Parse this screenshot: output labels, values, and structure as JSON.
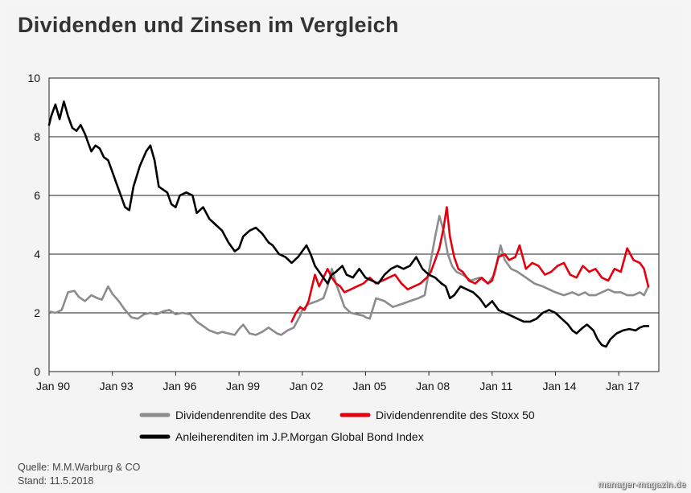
{
  "title": "Dividenden und Zinsen im Vergleich",
  "footer": {
    "source": "Quelle: M.M.Warburg & CO",
    "date": "Stand: 11.5.2018"
  },
  "watermark": "manager-magazin.de",
  "chart_data": {
    "type": "line",
    "title": "Dividenden und Zinsen im Vergleich",
    "xlabel": "",
    "ylabel": "",
    "xlim": [
      1990.0,
      2018.9
    ],
    "ylim": [
      0,
      10
    ],
    "y_ticks": [
      0,
      2,
      4,
      6,
      8,
      10
    ],
    "x_ticks": [
      {
        "label": "Jan 90",
        "value": 1990
      },
      {
        "label": "Jan 93",
        "value": 1993
      },
      {
        "label": "Jan 96",
        "value": 1996
      },
      {
        "label": "Jan 99",
        "value": 1999
      },
      {
        "label": "Jan 02",
        "value": 2002
      },
      {
        "label": "Jan 05",
        "value": 2005
      },
      {
        "label": "Jan 08",
        "value": 2008
      },
      {
        "label": "Jan 11",
        "value": 2011
      },
      {
        "label": "Jan 14",
        "value": 2014
      },
      {
        "label": "Jan 17",
        "value": 2017
      }
    ],
    "grid": "horizontal",
    "legend_position": "bottom",
    "series": [
      {
        "name": "Dividendenrendite des Dax",
        "color": "#8c8c8c",
        "x": [
          1990.0,
          1990.3,
          1990.6,
          1990.9,
          1991.2,
          1991.4,
          1991.7,
          1992.0,
          1992.3,
          1992.5,
          1992.8,
          1993.0,
          1993.3,
          1993.6,
          1993.9,
          1994.2,
          1994.5,
          1994.8,
          1995.1,
          1995.4,
          1995.7,
          1996.0,
          1996.3,
          1996.7,
          1997.0,
          1997.3,
          1997.6,
          1998.0,
          1998.2,
          1998.5,
          1998.8,
          1999.0,
          1999.2,
          1999.5,
          1999.8,
          2000.1,
          2000.4,
          2000.8,
          2001.0,
          2001.3,
          2001.6,
          2001.9,
          2002.0,
          2002.3,
          2002.7,
          2003.0,
          2003.2,
          2003.4,
          2003.6,
          2003.8,
          2004.0,
          2004.3,
          2004.6,
          2004.9,
          2005.0,
          2005.2,
          2005.5,
          2005.9,
          2006.3,
          2006.7,
          2007.1,
          2007.5,
          2007.8,
          2008.0,
          2008.1,
          2008.3,
          2008.5,
          2008.7,
          2008.9,
          2009.1,
          2009.3,
          2009.6,
          2010.0,
          2010.4,
          2010.8,
          2011.1,
          2011.4,
          2011.6,
          2011.9,
          2012.2,
          2012.6,
          2013.0,
          2013.4,
          2013.7,
          2014.0,
          2014.4,
          2014.8,
          2015.1,
          2015.4,
          2015.6,
          2015.9,
          2016.2,
          2016.5,
          2016.8,
          2017.1,
          2017.4,
          2017.7,
          2018.0,
          2018.2,
          2018.4
        ],
        "values": [
          2.05,
          2.0,
          2.1,
          2.7,
          2.75,
          2.55,
          2.4,
          2.6,
          2.5,
          2.45,
          2.9,
          2.65,
          2.4,
          2.1,
          1.85,
          1.8,
          1.95,
          2.0,
          1.95,
          2.05,
          2.1,
          1.95,
          2.0,
          1.95,
          1.7,
          1.55,
          1.4,
          1.3,
          1.35,
          1.3,
          1.25,
          1.45,
          1.6,
          1.3,
          1.25,
          1.35,
          1.5,
          1.3,
          1.25,
          1.4,
          1.5,
          1.9,
          2.1,
          2.3,
          2.4,
          2.5,
          2.9,
          3.5,
          3.0,
          2.6,
          2.2,
          2.0,
          1.95,
          1.9,
          1.85,
          1.8,
          2.5,
          2.4,
          2.2,
          2.3,
          2.4,
          2.5,
          2.6,
          3.4,
          3.8,
          4.6,
          5.3,
          4.8,
          4.0,
          3.6,
          3.4,
          3.3,
          3.1,
          3.2,
          3.0,
          3.3,
          4.3,
          3.8,
          3.5,
          3.4,
          3.2,
          3.0,
          2.9,
          2.8,
          2.7,
          2.6,
          2.7,
          2.6,
          2.7,
          2.6,
          2.6,
          2.7,
          2.8,
          2.7,
          2.7,
          2.6,
          2.6,
          2.7,
          2.6,
          2.9
        ]
      },
      {
        "name": "Dividendenrendite des Stoxx 50",
        "color": "#e3000f",
        "x": [
          2001.5,
          2001.7,
          2001.9,
          2002.1,
          2002.3,
          2002.6,
          2002.8,
          2003.0,
          2003.2,
          2003.4,
          2003.6,
          2003.8,
          2004.0,
          2004.3,
          2004.6,
          2004.9,
          2005.2,
          2005.5,
          2005.8,
          2006.1,
          2006.4,
          2006.7,
          2007.0,
          2007.3,
          2007.6,
          2007.9,
          2008.1,
          2008.3,
          2008.5,
          2008.7,
          2008.85,
          2009.0,
          2009.2,
          2009.4,
          2009.6,
          2009.9,
          2010.2,
          2010.5,
          2010.8,
          2011.0,
          2011.3,
          2011.6,
          2011.8,
          2012.1,
          2012.3,
          2012.6,
          2012.9,
          2013.2,
          2013.5,
          2013.8,
          2014.1,
          2014.4,
          2014.7,
          2015.0,
          2015.3,
          2015.6,
          2015.9,
          2016.2,
          2016.5,
          2016.8,
          2017.1,
          2017.4,
          2017.7,
          2018.0,
          2018.2,
          2018.4
        ],
        "values": [
          1.7,
          2.0,
          2.2,
          2.1,
          2.4,
          3.3,
          2.9,
          3.2,
          3.5,
          3.2,
          3.0,
          2.9,
          2.7,
          2.8,
          2.9,
          3.0,
          3.2,
          3.0,
          3.1,
          3.2,
          3.3,
          3.0,
          2.8,
          2.9,
          3.0,
          3.2,
          3.4,
          3.8,
          4.2,
          4.9,
          5.6,
          4.6,
          3.9,
          3.5,
          3.4,
          3.1,
          3.0,
          3.2,
          3.0,
          3.1,
          3.9,
          4.0,
          3.8,
          3.9,
          4.3,
          3.5,
          3.7,
          3.6,
          3.3,
          3.4,
          3.6,
          3.7,
          3.3,
          3.2,
          3.6,
          3.4,
          3.5,
          3.2,
          3.1,
          3.5,
          3.4,
          4.2,
          3.8,
          3.7,
          3.5,
          2.9
        ]
      },
      {
        "name": "Anleiherenditen im J.P.Morgan Global Bond Index",
        "color": "#000000",
        "x": [
          1990.0,
          1990.1,
          1990.3,
          1990.5,
          1990.7,
          1990.9,
          1991.1,
          1991.3,
          1991.5,
          1991.7,
          1992.0,
          1992.2,
          1992.4,
          1992.6,
          1992.8,
          1993.0,
          1993.2,
          1993.4,
          1993.6,
          1993.8,
          1994.0,
          1994.3,
          1994.6,
          1994.8,
          1995.0,
          1995.2,
          1995.4,
          1995.6,
          1995.8,
          1996.0,
          1996.2,
          1996.5,
          1996.8,
          1997.0,
          1997.3,
          1997.6,
          1997.9,
          1998.2,
          1998.5,
          1998.8,
          1999.0,
          1999.2,
          1999.5,
          1999.8,
          2000.1,
          2000.4,
          2000.6,
          2000.9,
          2001.2,
          2001.5,
          2001.8,
          2002.0,
          2002.2,
          2002.4,
          2002.6,
          2002.9,
          2003.2,
          2003.4,
          2003.6,
          2003.9,
          2004.1,
          2004.4,
          2004.7,
          2005.0,
          2005.3,
          2005.6,
          2005.9,
          2006.2,
          2006.5,
          2006.8,
          2007.1,
          2007.4,
          2007.7,
          2008.0,
          2008.3,
          2008.6,
          2008.8,
          2009.0,
          2009.2,
          2009.5,
          2009.8,
          2010.1,
          2010.4,
          2010.7,
          2011.0,
          2011.3,
          2011.6,
          2011.9,
          2012.2,
          2012.5,
          2012.8,
          2013.1,
          2013.4,
          2013.7,
          2014.0,
          2014.3,
          2014.6,
          2014.8,
          2015.0,
          2015.3,
          2015.5,
          2015.8,
          2016.0,
          2016.2,
          2016.4,
          2016.6,
          2016.9,
          2017.2,
          2017.5,
          2017.8,
          2018.0,
          2018.2,
          2018.4
        ],
        "values": [
          8.4,
          8.7,
          9.1,
          8.6,
          9.2,
          8.7,
          8.3,
          8.2,
          8.4,
          8.1,
          7.5,
          7.7,
          7.6,
          7.3,
          7.2,
          6.8,
          6.4,
          6.0,
          5.6,
          5.5,
          6.3,
          7.0,
          7.5,
          7.7,
          7.2,
          6.3,
          6.2,
          6.1,
          5.7,
          5.6,
          6.0,
          6.1,
          6.0,
          5.4,
          5.6,
          5.2,
          5.0,
          4.8,
          4.4,
          4.1,
          4.2,
          4.6,
          4.8,
          4.9,
          4.7,
          4.4,
          4.3,
          4.0,
          3.9,
          3.7,
          3.9,
          4.1,
          4.3,
          4.0,
          3.6,
          3.3,
          3.0,
          3.3,
          3.4,
          3.6,
          3.3,
          3.2,
          3.5,
          3.2,
          3.1,
          3.0,
          3.3,
          3.5,
          3.6,
          3.5,
          3.6,
          3.9,
          3.5,
          3.3,
          3.2,
          3.0,
          2.9,
          2.5,
          2.6,
          2.9,
          2.8,
          2.7,
          2.5,
          2.2,
          2.4,
          2.1,
          2.0,
          1.9,
          1.8,
          1.7,
          1.7,
          1.8,
          2.0,
          2.1,
          2.0,
          1.8,
          1.6,
          1.4,
          1.3,
          1.5,
          1.6,
          1.4,
          1.1,
          0.9,
          0.85,
          1.1,
          1.3,
          1.4,
          1.45,
          1.4,
          1.5,
          1.55,
          1.55
        ]
      }
    ]
  }
}
